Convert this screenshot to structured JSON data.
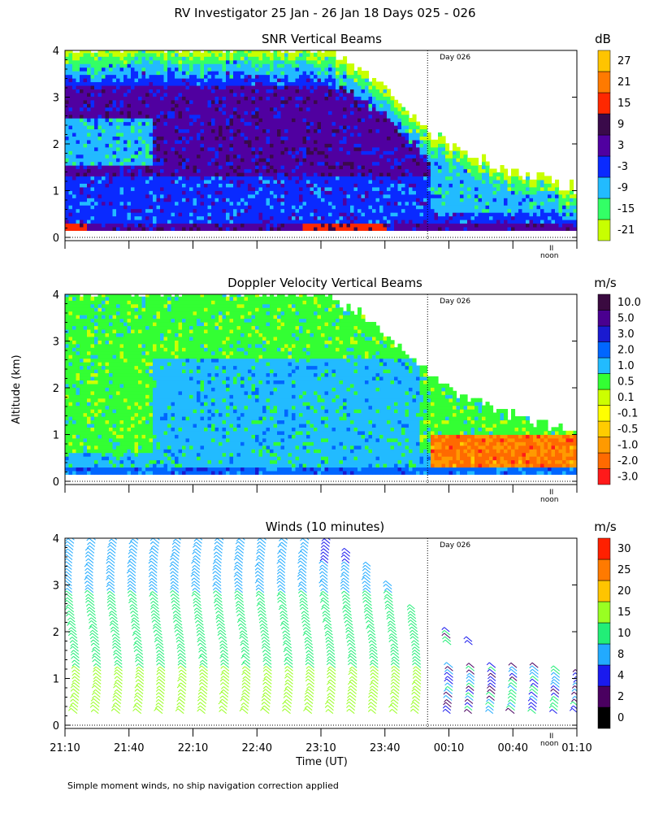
{
  "figure_title": "RV Investigator  25 Jan - 26 Jan 18 Days 025 - 026",
  "y_axis_label": "Altitude (km)",
  "x_axis_label": "Time (UT)",
  "footer_note": "Simple moment winds, no ship navigation correction applied",
  "day_marker_label": "Day 026",
  "noon_label": "noon",
  "noon_symbol": "II",
  "colors": {
    "snr": [
      "#c8ff00",
      "#33ff66",
      "#22bbff",
      "#0a2aff",
      "#5000a0",
      "#3a0a4a",
      "#ff2800",
      "#ff7a00",
      "#ffc400"
    ],
    "doppler": [
      "#ff1a1a",
      "#ff6a00",
      "#ff9a00",
      "#ffcc00",
      "#ffff00",
      "#ccff00",
      "#33ff33",
      "#22bbff",
      "#0066ff",
      "#1a1ad0",
      "#4a0090",
      "#3a0a40"
    ],
    "winds": [
      "#000000",
      "#4a0060",
      "#1a1aee",
      "#22aaff",
      "#22ee77",
      "#99ff22",
      "#ffc400",
      "#ff7a00",
      "#ff2000"
    ]
  },
  "chart_data": [
    {
      "type": "heatmap",
      "title": "SNR Vertical Beams",
      "ylabel": "Altitude (km)",
      "ylim": [
        0,
        4
      ],
      "y_ticks": [
        "0",
        "1",
        "2",
        "3",
        "4"
      ],
      "x_range_minutes": [
        0,
        240
      ],
      "colorbar_unit": "dB",
      "colorbar_levels": [
        "-21",
        "-15",
        "-9",
        "-3",
        "3",
        "9",
        "15",
        "21",
        "27"
      ],
      "day_marker_minutes": 170,
      "noon_marker_minutes": 232,
      "cloud_top_km": [
        {
          "t": 0,
          "top": 4.0
        },
        {
          "t": 60,
          "top": 4.0
        },
        {
          "t": 120,
          "top": 4.0
        },
        {
          "t": 140,
          "top": 3.5
        },
        {
          "t": 160,
          "top": 2.7
        },
        {
          "t": 170,
          "top": 2.2
        },
        {
          "t": 185,
          "top": 1.8
        },
        {
          "t": 200,
          "top": 1.5
        },
        {
          "t": 240,
          "top": 1.0
        }
      ]
    },
    {
      "type": "heatmap",
      "title": "Doppler Velocity Vertical Beams",
      "ylabel": "Altitude (km)",
      "ylim": [
        0,
        4
      ],
      "y_ticks": [
        "0",
        "1",
        "2",
        "3",
        "4"
      ],
      "x_range_minutes": [
        0,
        240
      ],
      "colorbar_unit": "m/s",
      "colorbar_levels": [
        "-3.0",
        "-2.0",
        "-1.0",
        "-0.5",
        "-0.1",
        "0.1",
        "0.5",
        "1.0",
        "2.0",
        "3.0",
        "5.0",
        "10.0"
      ],
      "day_marker_minutes": 170,
      "noon_marker_minutes": 232
    },
    {
      "type": "scatter",
      "title": "Winds (10 minutes)",
      "ylabel": "Altitude (km)",
      "xlabel": "Time (UT)",
      "ylim": [
        0,
        4
      ],
      "y_ticks": [
        "0",
        "1",
        "2",
        "3",
        "4"
      ],
      "x_tick_labels": [
        "21:10",
        "21:40",
        "22:10",
        "22:40",
        "23:10",
        "23:40",
        "00:10",
        "00:40",
        "01:10"
      ],
      "x_range_minutes": [
        0,
        240
      ],
      "colorbar_unit": "m/s",
      "colorbar_levels": [
        "0",
        "2",
        "4",
        "8",
        "10",
        "15",
        "20",
        "25",
        "30"
      ],
      "day_marker_minutes": 170,
      "noon_marker_minutes": 232,
      "profile_times_minutes": [
        5,
        15,
        25,
        35,
        45,
        55,
        65,
        75,
        85,
        95,
        105,
        115,
        125,
        135,
        145,
        155,
        165,
        180,
        190,
        200,
        210,
        220,
        230,
        240
      ]
    }
  ]
}
